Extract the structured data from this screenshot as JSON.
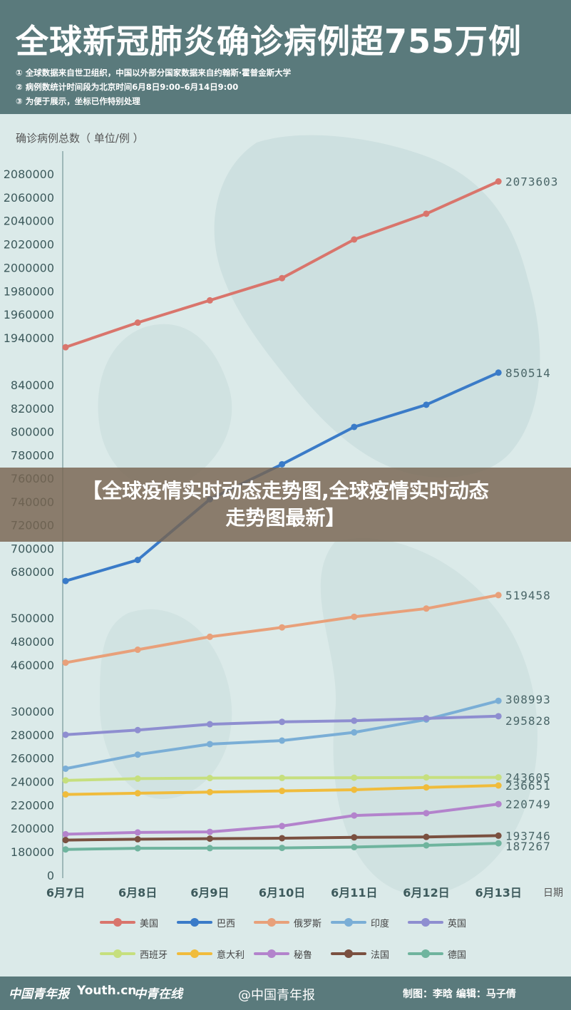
{
  "header": {
    "title": "全球新冠肺炎确诊病例超755万例",
    "notes": [
      "① 全球数据来自世卫组织，中国以外部分国家数据来自约翰斯·霍普金斯大学",
      "② 病例数统计时间段为北京时间6月8日9:00–6月14日9:00",
      "③ 为便于展示，坐标已作特别处理"
    ]
  },
  "banner": {
    "line1": "【全球疫情实时动态走势图,全球疫情实时动态",
    "line2": "走势图最新】"
  },
  "chart_data": {
    "type": "line",
    "ylabel": "确诊病例总数（ 单位/例 ）",
    "xlabel": "日期",
    "x": [
      "6月7日",
      "6月8日",
      "6月9日",
      "6月10日",
      "6月11日",
      "6月12日",
      "6月13日"
    ],
    "y_ticks": [
      0,
      180000,
      200000,
      220000,
      240000,
      260000,
      280000,
      300000,
      460000,
      480000,
      500000,
      680000,
      700000,
      720000,
      740000,
      760000,
      780000,
      800000,
      820000,
      840000,
      1940000,
      1960000,
      1980000,
      2000000,
      2020000,
      2040000,
      2060000,
      2080000
    ],
    "scale_note": "broken axis: separate segments for 0–300000, 460000–500000, 680000–840000, 1940000–2080000",
    "series": [
      {
        "name": "美国",
        "color": "#d9756c",
        "values": [
          1932000,
          1953000,
          1972000,
          1991000,
          2024000,
          2046000,
          2073603
        ],
        "end_label": "2073603"
      },
      {
        "name": "巴西",
        "color": "#3a7bc8",
        "values": [
          672000,
          690000,
          742000,
          772000,
          804000,
          823000,
          850514
        ],
        "end_label": "850514"
      },
      {
        "name": "俄罗斯",
        "color": "#e8a07a",
        "values": [
          462000,
          473000,
          484000,
          492000,
          501000,
          508000,
          519458
        ],
        "end_label": "519458"
      },
      {
        "name": "印度",
        "color": "#7aaed6",
        "values": [
          251000,
          263000,
          272000,
          275000,
          282000,
          293000,
          308993
        ],
        "end_label": "308993"
      },
      {
        "name": "英国",
        "color": "#8e8ed0",
        "values": [
          280000,
          284000,
          289000,
          291000,
          292000,
          294000,
          295828
        ],
        "end_label": "295828"
      },
      {
        "name": "西班牙",
        "color": "#c6df7e",
        "values": [
          241000,
          242500,
          243000,
          243100,
          243300,
          243500,
          243605
        ],
        "end_label": "243605"
      },
      {
        "name": "意大利",
        "color": "#f0bc3c",
        "values": [
          229000,
          230000,
          231000,
          232000,
          233000,
          235000,
          236651
        ],
        "end_label": "236651"
      },
      {
        "name": "秘鲁",
        "color": "#b383cc",
        "values": [
          195000,
          196500,
          197000,
          202000,
          211000,
          213000,
          220749
        ],
        "end_label": "220749"
      },
      {
        "name": "法国",
        "color": "#7a5040",
        "values": [
          190000,
          190700,
          191200,
          191600,
          192300,
          192700,
          193746
        ],
        "end_label": "193746"
      },
      {
        "name": "德国",
        "color": "#6fb49e",
        "values": [
          182000,
          183000,
          183100,
          183300,
          184000,
          185500,
          187267
        ],
        "end_label": "187267"
      }
    ]
  },
  "footer": {
    "logo1": "中国青年报",
    "logo2": "Youth.cn",
    "logo3": "中青在线",
    "weibo": "@中国青年报",
    "credits": "制图：李晗  编辑：马子倩"
  },
  "colors": {
    "header_bg": "#5a7a7c",
    "page_bg": "#dbeae9",
    "banner_bg": "#786450"
  }
}
